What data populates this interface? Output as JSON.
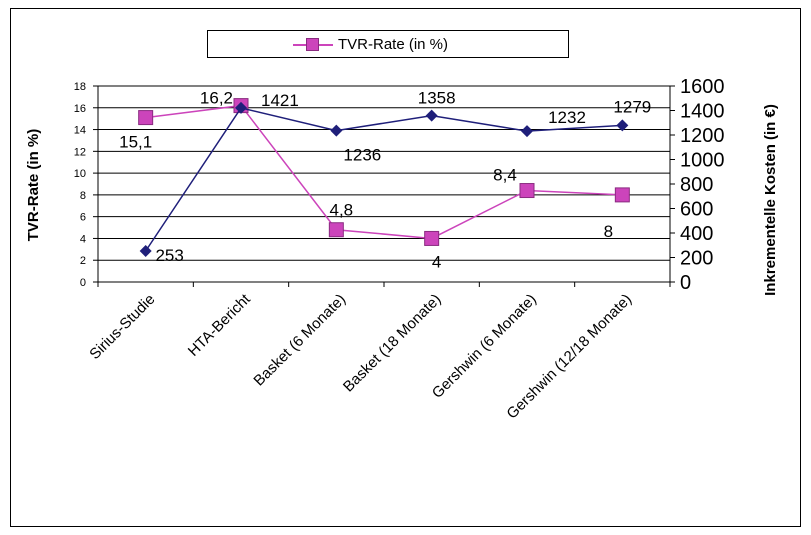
{
  "chart_data": {
    "type": "line",
    "categories": [
      "Sirius-Studie",
      "HTA-Bericht",
      "Basket (6 Monate)",
      "Basket (18 Monate)",
      "Gershwin (6 Monate)",
      "Gershwin (12/18 Monate)"
    ],
    "series": [
      {
        "name": "TVR-Rate (in %)",
        "axis": "left",
        "values": [
          15.1,
          16.2,
          4.8,
          4,
          8.4,
          8
        ],
        "value_labels": [
          "15,1",
          "16,2",
          "4,8",
          "4",
          "8,4",
          "8"
        ],
        "color": "#cc44bb",
        "marker": "square"
      },
      {
        "axis": "right",
        "values": [
          253,
          1421,
          1236,
          1358,
          1232,
          1279
        ],
        "value_labels": [
          "253",
          "1421",
          "1236",
          "1358",
          "1232",
          "1279"
        ],
        "color": "#1f1f7a",
        "marker": "diamond"
      }
    ],
    "ylabel": "TVR-Rate (in %)",
    "ylabel_right": "Inkrementelle Kosten (in €)",
    "ylim": [
      0,
      18
    ],
    "ylim_right": [
      0,
      1600
    ],
    "yticks": [
      "0",
      "2",
      "4",
      "6",
      "8",
      "10",
      "12",
      "14",
      "16",
      "18"
    ],
    "yticks_right": [
      "0",
      "200",
      "400",
      "600",
      "800",
      "1000",
      "1200",
      "1400",
      "1600"
    ],
    "grid": true,
    "legend": "top-center"
  }
}
